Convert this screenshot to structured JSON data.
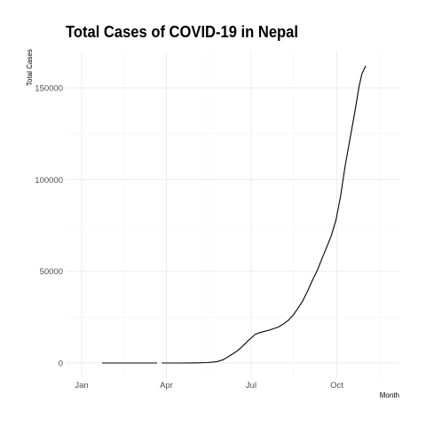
{
  "chart_data": {
    "type": "line",
    "title": "Total Cases of COVID-19 in Nepal",
    "xlabel": "Month",
    "ylabel": "Total Cases",
    "x_ticks": [
      "Jan",
      "Apr",
      "Jul",
      "Oct"
    ],
    "y_ticks": [
      0,
      50000,
      100000,
      150000
    ],
    "x_range": [
      "2020-01-01",
      "2020-11-20"
    ],
    "ylim": [
      0,
      165000
    ],
    "grid": true,
    "line_color": "#000000",
    "series": [
      {
        "segments": [
          [
            [
              "2020-01-23",
              1
            ],
            [
              "2020-03-22",
              1
            ]
          ],
          [
            [
              "2020-03-27",
              3
            ],
            [
              "2020-04-15",
              16
            ],
            [
              "2020-05-01",
              57
            ],
            [
              "2020-05-15",
              249
            ],
            [
              "2020-05-25",
              682
            ],
            [
              "2020-06-01",
              1811
            ],
            [
              "2020-06-05",
              3000
            ],
            [
              "2020-06-10",
              4614
            ],
            [
              "2020-06-15",
              6211
            ],
            [
              "2020-06-20",
              8274
            ],
            [
              "2020-06-25",
              10728
            ],
            [
              "2020-06-28",
              12309
            ],
            [
              "2020-07-01",
              13564
            ],
            [
              "2020-07-05",
              15491
            ],
            [
              "2020-07-10",
              16531
            ],
            [
              "2020-07-20",
              17844
            ],
            [
              "2020-07-30",
              19547
            ],
            [
              "2020-08-05",
              21390
            ],
            [
              "2020-08-10",
              23310
            ],
            [
              "2020-08-15",
              26019
            ],
            [
              "2020-08-20",
              29645
            ],
            [
              "2020-08-25",
              33533
            ],
            [
              "2020-08-30",
              38561
            ],
            [
              "2020-09-05",
              45276
            ],
            [
              "2020-09-10",
              50465
            ],
            [
              "2020-09-15",
              56788
            ],
            [
              "2020-09-20",
              63000
            ],
            [
              "2020-09-25",
              69300
            ],
            [
              "2020-09-30",
              77817
            ],
            [
              "2020-10-05",
              90814
            ],
            [
              "2020-10-10",
              107755
            ],
            [
              "2020-10-15",
              121745
            ],
            [
              "2020-10-20",
              136036
            ],
            [
              "2020-10-25",
              151000
            ],
            [
              "2020-10-28",
              157800
            ],
            [
              "2020-11-01",
              162000
            ]
          ]
        ]
      }
    ]
  }
}
